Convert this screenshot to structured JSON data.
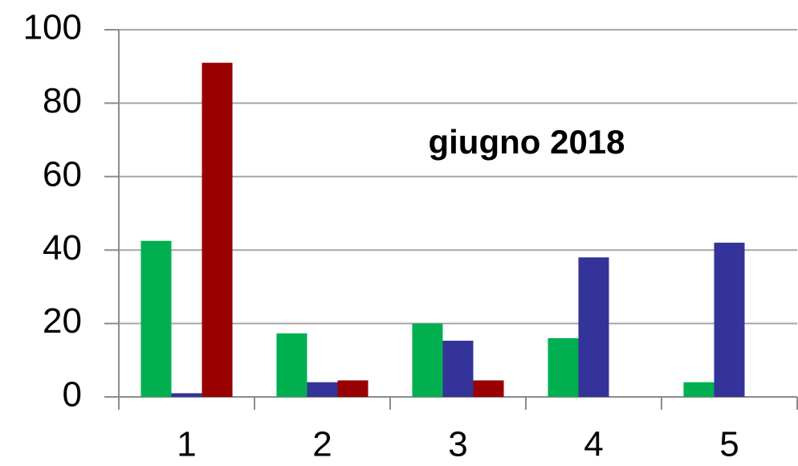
{
  "chart_data": {
    "type": "bar",
    "title": "giugno 2018",
    "categories": [
      "1",
      "2",
      "3",
      "4",
      "5"
    ],
    "series": [
      {
        "color": "#00b050",
        "values": [
          42.5,
          17.3,
          20,
          16,
          4
        ]
      },
      {
        "color": "#333399",
        "values": [
          1,
          4,
          15.3,
          38,
          42
        ]
      },
      {
        "color": "#990000",
        "values": [
          91,
          4.5,
          4.5,
          null,
          null
        ]
      }
    ],
    "ylim": [
      0,
      100
    ],
    "yticks": [
      0,
      20,
      40,
      60,
      80,
      100
    ],
    "grid": true
  }
}
